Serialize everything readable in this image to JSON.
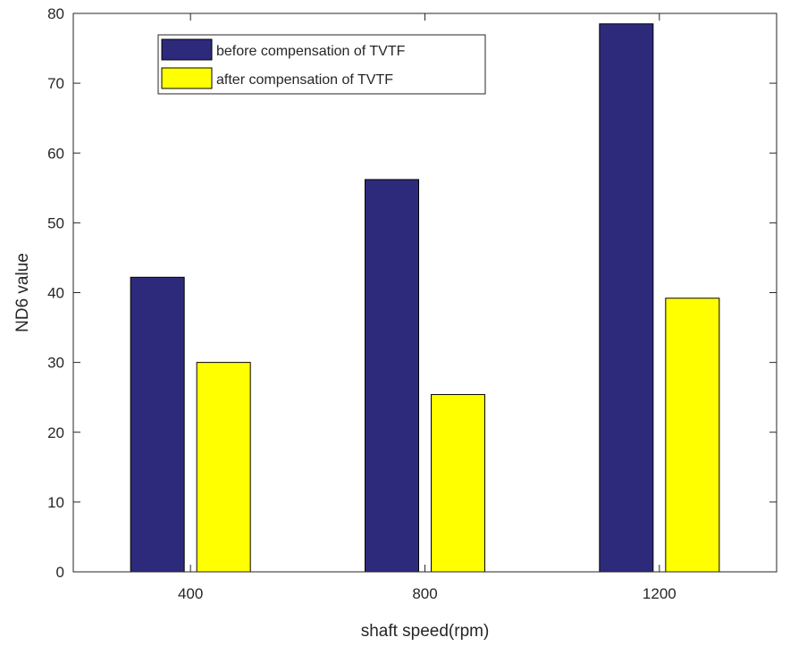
{
  "chart_data": {
    "type": "bar",
    "title": "",
    "xlabel": "shaft speed(rpm)",
    "ylabel": "ND6 value",
    "categories": [
      "400",
      "800",
      "1200"
    ],
    "ylim": [
      0,
      80
    ],
    "yticks": [
      0,
      10,
      20,
      30,
      40,
      50,
      60,
      70,
      80
    ],
    "grid": false,
    "legend_position": "top-left",
    "series": [
      {
        "name": "before compensation of TVTF",
        "color": "#2e2a7b",
        "values": [
          42.2,
          56.2,
          78.5
        ]
      },
      {
        "name": "after compensation of TVTF",
        "color": "#ffff00",
        "values": [
          30.0,
          25.4,
          39.2
        ]
      }
    ]
  }
}
